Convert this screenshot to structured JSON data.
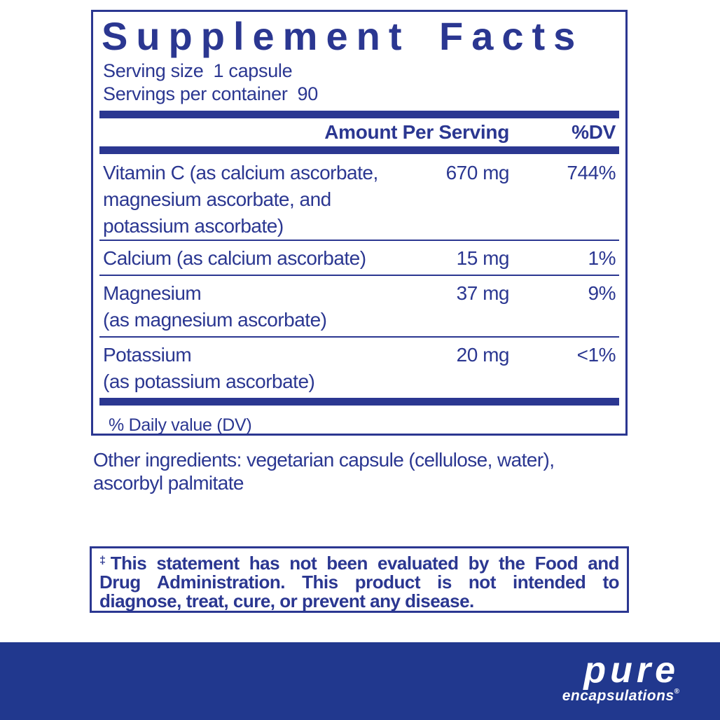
{
  "colors": {
    "label_navy": "#2b3791",
    "band_blue": "#21388e",
    "background": "#ffffff",
    "logo_white": "#ffffff"
  },
  "label": {
    "title": "Supplement Facts",
    "serving_size_label": "Serving size",
    "serving_size_value": "1 capsule",
    "servings_per_container_label": "Servings per container",
    "servings_per_container_value": "90",
    "header": {
      "amount": "Amount Per Serving",
      "dv": "%DV"
    },
    "rows": [
      {
        "name_lines": [
          "Vitamin C (as calcium ascorbate,",
          "magnesium ascorbate, and",
          "potassium ascorbate)"
        ],
        "amount": "670 mg",
        "dv": "744%"
      },
      {
        "name_lines": [
          "Calcium (as calcium ascorbate)"
        ],
        "amount": "15 mg",
        "dv": "1%"
      },
      {
        "name_lines": [
          "Magnesium",
          "(as magnesium ascorbate)"
        ],
        "amount": "37 mg",
        "dv": "9%"
      },
      {
        "name_lines": [
          "Potassium",
          "(as potassium ascorbate)"
        ],
        "amount": "20 mg",
        "dv": "<1%"
      }
    ],
    "footnote": "% Daily value (DV)"
  },
  "other_ingredients": {
    "lines": [
      "Other ingredients: vegetarian capsule (cellulose, water),",
      "ascorbyl palmitate"
    ]
  },
  "disclaimer": {
    "dagger": "‡",
    "lines": [
      "This statement has not been evaluated by the Food and",
      "Drug Administration. This product is not intended to",
      "diagnose, treat, cure, or prevent any disease."
    ]
  },
  "brand": {
    "name": "pure",
    "subname": "encapsulations",
    "registered": "®"
  }
}
